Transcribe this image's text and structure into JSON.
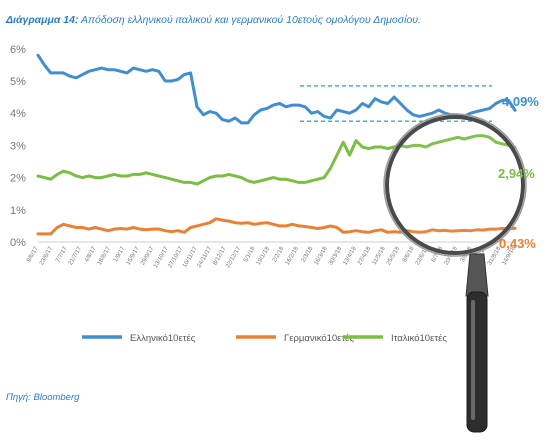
{
  "header": {
    "figure_label": "Διάγραμμα 14:",
    "title_text": "Απόδοση ελληνικού ιταλικού και γερμανικού 10ετούς ομολόγου Δημοσίου."
  },
  "footer": {
    "source": "Πηγή: Bloomberg"
  },
  "colors": {
    "greek": "#3E8ED0",
    "german": "#E98033",
    "italian": "#79BF42",
    "guide": "#35B6D6",
    "axis": "#cccccc",
    "magnifier_frame": "#4a4a4a"
  },
  "chart_data": {
    "type": "line",
    "title": "Απόδοση ελληνικού ιταλικού και γερμανικού 10ετούς ομολόγου Δημοσίου.",
    "y_tick_labels": [
      "0%",
      "1%",
      "2%",
      "3%",
      "4%",
      "5%",
      "6%"
    ],
    "ylim": [
      0,
      6.5
    ],
    "x_tick_labels": [
      "9/6/17",
      "23/6/17",
      "7/7/17",
      "21/7/17",
      "4/8/17",
      "18/8/17",
      "1/9/17",
      "15/9/17",
      "29/9/17",
      "13/10/17",
      "27/10/17",
      "10/11/17",
      "24/11/17",
      "8/12/17",
      "22/12/17",
      "5/1/18",
      "19/1/18",
      "2/2/18",
      "16/2/18",
      "2/3/18",
      "16/3/18",
      "30/3/18",
      "13/4/18",
      "27/4/18",
      "11/5/18",
      "25/5/18",
      "8/6/18",
      "22/6/18",
      "6/7/18",
      "20/7/18",
      "3/8/18",
      "17/8/18",
      "31/8/18",
      "14/9/18"
    ],
    "grid": false,
    "legend_position": "bottom",
    "series": [
      {
        "name": "Ελληνικό10ετές",
        "color_key": "greek",
        "end_label": "4,09%",
        "values": [
          5.8,
          5.5,
          5.25,
          5.25,
          5.25,
          5.15,
          5.1,
          5.2,
          5.3,
          5.35,
          5.4,
          5.35,
          5.35,
          5.3,
          5.25,
          5.4,
          5.35,
          5.3,
          5.35,
          5.3,
          5.0,
          5.0,
          5.05,
          5.2,
          5.25,
          4.2,
          3.95,
          4.05,
          4.0,
          3.8,
          3.75,
          3.85,
          3.7,
          3.7,
          3.95,
          4.1,
          4.15,
          4.25,
          4.3,
          4.2,
          4.25,
          4.25,
          4.2,
          4.0,
          4.05,
          3.9,
          3.85,
          4.1,
          4.05,
          4.0,
          4.1,
          4.3,
          4.2,
          4.45,
          4.35,
          4.3,
          4.5,
          4.3,
          4.1,
          3.95,
          3.9,
          3.95,
          4.0,
          4.1,
          4.0,
          3.95,
          3.95,
          3.9,
          4.0,
          4.05,
          4.1,
          4.15,
          4.3,
          4.4,
          4.4,
          4.09
        ]
      },
      {
        "name": "Γερμανικό10ετές",
        "color_key": "german",
        "end_label": "0,43%",
        "values": [
          0.25,
          0.25,
          0.25,
          0.45,
          0.55,
          0.5,
          0.45,
          0.45,
          0.4,
          0.45,
          0.4,
          0.35,
          0.4,
          0.42,
          0.4,
          0.45,
          0.4,
          0.38,
          0.4,
          0.4,
          0.35,
          0.32,
          0.35,
          0.3,
          0.45,
          0.5,
          0.55,
          0.6,
          0.72,
          0.68,
          0.65,
          0.6,
          0.58,
          0.6,
          0.55,
          0.58,
          0.6,
          0.55,
          0.5,
          0.5,
          0.55,
          0.5,
          0.48,
          0.45,
          0.42,
          0.45,
          0.5,
          0.45,
          0.3,
          0.32,
          0.35,
          0.32,
          0.3,
          0.35,
          0.38,
          0.3,
          0.32,
          0.3,
          0.35,
          0.32,
          0.3,
          0.32,
          0.38,
          0.35,
          0.36,
          0.34,
          0.35,
          0.36,
          0.35,
          0.38,
          0.37,
          0.4,
          0.4,
          0.42,
          0.41,
          0.43
        ]
      },
      {
        "name": "Ιταλικό10ετές",
        "color_key": "italian",
        "end_label": "2,94%",
        "values": [
          2.05,
          2.0,
          1.95,
          2.1,
          2.2,
          2.15,
          2.05,
          2.0,
          2.05,
          2.0,
          2.0,
          2.05,
          2.1,
          2.05,
          2.05,
          2.1,
          2.1,
          2.15,
          2.1,
          2.05,
          2.0,
          1.95,
          1.9,
          1.85,
          1.85,
          1.8,
          1.9,
          2.0,
          2.05,
          2.05,
          2.1,
          2.05,
          2.0,
          1.9,
          1.85,
          1.9,
          1.95,
          2.0,
          1.95,
          1.95,
          1.9,
          1.85,
          1.85,
          1.9,
          1.95,
          2.0,
          2.3,
          2.7,
          3.1,
          2.7,
          3.15,
          2.95,
          2.9,
          2.95,
          2.95,
          2.9,
          2.95,
          3.0,
          2.95,
          3.0,
          3.0,
          2.95,
          3.05,
          3.1,
          3.15,
          3.2,
          3.25,
          3.2,
          3.25,
          3.3,
          3.3,
          3.25,
          3.1,
          3.05,
          3.0,
          2.94
        ]
      }
    ],
    "annotations": {
      "guide_band": [
        3.75,
        4.85
      ]
    }
  }
}
